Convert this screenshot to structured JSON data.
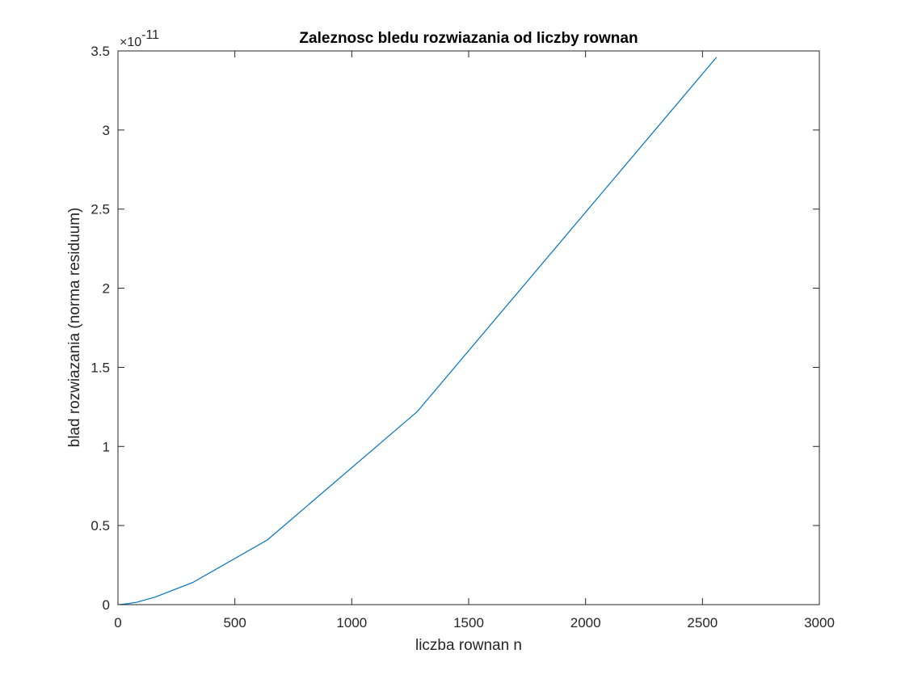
{
  "chart_data": {
    "type": "line",
    "title": "Zaleznosc bledu rozwiazania od liczby rownan",
    "xlabel": "liczba rownan n",
    "ylabel": "blad rozwiazania (norma residuum)",
    "y_exponent_multiplier": "×10",
    "y_exponent_power": "-11",
    "xlim": [
      0,
      3000
    ],
    "ylim": [
      0,
      3.5
    ],
    "y_scale_factor": 1e-11,
    "x_ticks": [
      0,
      500,
      1000,
      1500,
      2000,
      2500,
      3000
    ],
    "x_tick_labels": [
      "0",
      "500",
      "1000",
      "1500",
      "2000",
      "2500",
      "3000"
    ],
    "y_ticks": [
      0,
      0.5,
      1,
      1.5,
      2,
      2.5,
      3,
      3.5
    ],
    "y_tick_labels": [
      "0",
      "0.5",
      "1",
      "1.5",
      "2",
      "2.5",
      "3",
      "3.5"
    ],
    "grid": false,
    "line_color": "#0072BD",
    "series": [
      {
        "x": [
          5,
          10,
          20,
          40,
          80,
          160,
          320,
          640,
          1280,
          2560
        ],
        "y": [
          0.0005,
          0.001,
          0.003,
          0.006,
          0.015,
          0.048,
          0.14,
          0.41,
          1.22,
          3.46
        ]
      }
    ]
  }
}
